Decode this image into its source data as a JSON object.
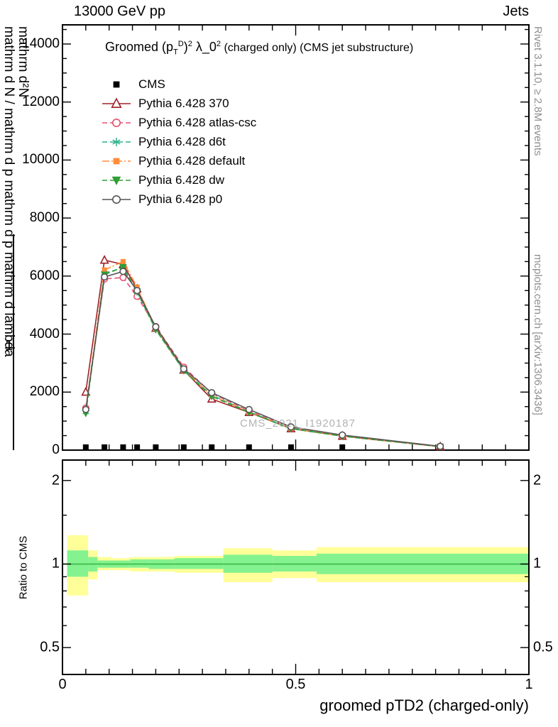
{
  "header": {
    "left": "13000 GeV pp",
    "right": "Jets"
  },
  "side_notes": {
    "top": "Rivet 3.1.10, ≥ 2.8M events",
    "bottom": "mcplots.cern.ch [arXiv:1306.3436]"
  },
  "watermark": "CMS_2021_I1920187",
  "title_segments": [
    {
      "t": "Groomed (p",
      "s": "n"
    },
    {
      "t": "T",
      "s": "sub"
    },
    {
      "t": "D",
      "s": "sup"
    },
    {
      "t": ")",
      "s": "n"
    },
    {
      "t": "2",
      "s": "sup"
    },
    {
      "t": " λ_0",
      "s": "n"
    },
    {
      "t": "2",
      "s": "sup"
    },
    {
      "t": "  (charged only) (CMS jet substructure)",
      "s": "small"
    }
  ],
  "ylabel": {
    "outer": "mathrm d N / mathrm d p mathrm d p mathrm d lambda",
    "inner": "mathrm d²N",
    "one": "1"
  },
  "legend": {
    "items": [
      {
        "label": "CMS"
      },
      {
        "label": "Pythia 6.428 370"
      },
      {
        "label": "Pythia 6.428 atlas-csc"
      },
      {
        "label": "Pythia 6.428 d6t"
      },
      {
        "label": "Pythia 6.428 default"
      },
      {
        "label": "Pythia 6.428 dw"
      },
      {
        "label": "Pythia 6.428 p0"
      }
    ]
  },
  "chart_data": {
    "type": "line",
    "title": "Groomed (p_T^D)^2 λ_0^2 (charged only) (CMS jet substructure)",
    "xlabel": "groomed pTD2 (charged-only)",
    "ylabel": "mathrm d²N / mathrm d N mathrm d p mathrm d p mathrm d lambda",
    "xlim": [
      0,
      1
    ],
    "ylim": [
      0,
      14660
    ],
    "grid": false,
    "legend_position": "top-left",
    "xticks": {
      "values": [
        0,
        0.5,
        1
      ],
      "labels": [
        "0",
        "0.5",
        "1"
      ]
    },
    "yticks": {
      "values": [
        0,
        2000,
        4000,
        6000,
        8000,
        10000,
        12000,
        14000
      ],
      "labels": [
        "0",
        "2000",
        "4000",
        "6000",
        "8000",
        "10000",
        "12000",
        "14000"
      ]
    },
    "x": [
      0.05,
      0.09,
      0.13,
      0.16,
      0.2,
      0.26,
      0.32,
      0.4,
      0.49,
      0.6,
      0.81
    ],
    "series": [
      {
        "name": "Pythia 6.428 370",
        "color": "#a02128",
        "line": "solid",
        "marker": "open-triangle-up",
        "values": [
          2000,
          6550,
          6400,
          5560,
          4200,
          2760,
          1760,
          1300,
          740,
          480,
          120
        ]
      },
      {
        "name": "Pythia 6.428 atlas-csc",
        "color": "#e8506e",
        "line": "dashed",
        "marker": "open-circle",
        "values": [
          1450,
          5900,
          5950,
          5300,
          4260,
          2860,
          1960,
          1350,
          760,
          500,
          130
        ]
      },
      {
        "name": "Pythia 6.428 d6t",
        "color": "#2ab08a",
        "line": "dashed",
        "marker": "asterisk",
        "values": [
          1310,
          6100,
          6280,
          5450,
          4150,
          2750,
          1900,
          1320,
          750,
          490,
          125
        ]
      },
      {
        "name": "Pythia 6.428 default",
        "color": "#ff8c3a",
        "line": "dashdot",
        "marker": "filled-square",
        "values": [
          1400,
          6210,
          6500,
          5620,
          4200,
          2770,
          1880,
          1310,
          745,
          485,
          120
        ]
      },
      {
        "name": "Pythia 6.428 dw",
        "color": "#2f9e33",
        "line": "dashed",
        "marker": "filled-triangle-down",
        "values": [
          1270,
          6050,
          6310,
          5470,
          4160,
          2740,
          1850,
          1300,
          740,
          480,
          120
        ]
      },
      {
        "name": "Pythia 6.428 p0",
        "color": "#555555",
        "line": "solid",
        "marker": "open-circle",
        "values": [
          1400,
          5970,
          6160,
          5500,
          4250,
          2800,
          1980,
          1400,
          800,
          520,
          130
        ]
      }
    ],
    "cms": {
      "name": "CMS",
      "color": "#000000",
      "marker": "filled-square",
      "x": [
        0.05,
        0.09,
        0.13,
        0.16,
        0.2,
        0.26,
        0.32,
        0.4,
        0.49,
        0.6
      ],
      "values": [
        100,
        100,
        100,
        100,
        100,
        100,
        100,
        100,
        100,
        100
      ]
    },
    "ratio": {
      "label": "Ratio to CMS",
      "scale": "log",
      "ylim": [
        0.4,
        2.37
      ],
      "yticks": {
        "values": [
          0.5,
          1,
          2
        ],
        "labels": [
          "0.5",
          "1",
          "2"
        ]
      },
      "unity_line": 1.0,
      "band_colors": {
        "yellow": "#ffff99",
        "green": "#84f28f",
        "line": "#3dbb4a"
      },
      "bands": [
        {
          "x0": 0.01,
          "x1": 0.055,
          "yellow": [
            0.77,
            1.27
          ],
          "green": [
            0.9,
            1.12
          ]
        },
        {
          "x0": 0.055,
          "x1": 0.075,
          "yellow": [
            0.88,
            1.12
          ],
          "green": [
            0.94,
            1.06
          ]
        },
        {
          "x0": 0.075,
          "x1": 0.105,
          "yellow": [
            0.95,
            1.06
          ],
          "green": [
            0.97,
            1.03
          ]
        },
        {
          "x0": 0.105,
          "x1": 0.145,
          "yellow": [
            0.95,
            1.05
          ],
          "green": [
            0.97,
            1.03
          ]
        },
        {
          "x0": 0.145,
          "x1": 0.185,
          "yellow": [
            0.94,
            1.06
          ],
          "green": [
            0.97,
            1.04
          ]
        },
        {
          "x0": 0.185,
          "x1": 0.24,
          "yellow": [
            0.94,
            1.06
          ],
          "green": [
            0.96,
            1.04
          ]
        },
        {
          "x0": 0.24,
          "x1": 0.345,
          "yellow": [
            0.93,
            1.07
          ],
          "green": [
            0.96,
            1.05
          ]
        },
        {
          "x0": 0.345,
          "x1": 0.45,
          "yellow": [
            0.86,
            1.14
          ],
          "green": [
            0.93,
            1.08
          ]
        },
        {
          "x0": 0.45,
          "x1": 0.545,
          "yellow": [
            0.89,
            1.12
          ],
          "green": [
            0.94,
            1.07
          ]
        },
        {
          "x0": 0.545,
          "x1": 1.0,
          "yellow": [
            0.86,
            1.15
          ],
          "green": [
            0.92,
            1.09
          ]
        }
      ]
    }
  }
}
